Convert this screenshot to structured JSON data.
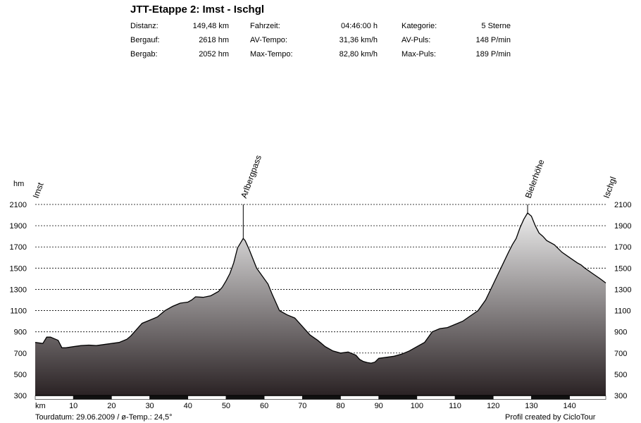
{
  "header": {
    "title": "JTT-Etappe 2: Imst - Ischgl",
    "stats": [
      {
        "label": "Distanz:",
        "value": "149,48 km"
      },
      {
        "label": "Bergauf:",
        "value": "2618 hm"
      },
      {
        "label": "Bergab:",
        "value": "2052 hm"
      },
      {
        "label": "Fahrzeit:",
        "value": "04:46:00 h"
      },
      {
        "label": "AV-Tempo:",
        "value": "31,36 km/h"
      },
      {
        "label": "Max-Tempo:",
        "value": "82,80 km/h"
      },
      {
        "label": "Kategorie:",
        "value": "5 Sterne"
      },
      {
        "label": "AV-Puls:",
        "value": "148 P/min"
      },
      {
        "label": "Max-Puls:",
        "value": "189 P/min"
      }
    ]
  },
  "footer": {
    "left": "Tourdatum: 29.06.2009  /  ø-Temp.: 24,5°",
    "right": "Profil created by CicloTour"
  },
  "colors": {
    "fill_top": "#ececec",
    "fill_bottom": "#2a2224",
    "outline": "#000000",
    "grid": "#000000"
  },
  "chart_data": {
    "type": "area",
    "ylabel": "hm",
    "xlabel": "km",
    "xlim": [
      0,
      149.48
    ],
    "ylim": [
      300,
      2100
    ],
    "yticks": [
      2100,
      1900,
      1700,
      1500,
      1300,
      1100,
      900,
      700,
      500,
      300
    ],
    "xticks": [
      10,
      20,
      30,
      40,
      50,
      60,
      70,
      80,
      90,
      100,
      110,
      120,
      130,
      140
    ],
    "grid": "horizontal dotted",
    "waypoints": [
      {
        "name": "Imst",
        "km": 0
      },
      {
        "name": "Arlbergpass",
        "km": 54.5,
        "elevation": 1780
      },
      {
        "name": "Bielerhöhe",
        "km": 129,
        "elevation": 2020
      },
      {
        "name": "Ischgl",
        "km": 149.48
      }
    ],
    "series": [
      {
        "x": [
          0,
          2,
          3,
          4,
          6,
          7,
          8,
          10,
          12,
          14,
          16,
          18,
          20,
          22,
          24,
          25,
          26,
          28,
          30,
          32,
          34,
          36,
          38,
          40,
          41,
          42,
          44,
          46,
          48,
          49,
          50,
          51,
          52,
          53,
          54,
          54.5,
          55,
          56,
          58,
          60,
          61,
          62,
          64,
          66,
          68,
          70,
          72,
          74,
          76,
          78,
          80,
          82,
          84,
          85,
          86,
          87,
          88,
          89,
          90,
          92,
          94,
          96,
          98,
          100,
          102,
          104,
          106,
          108,
          110,
          112,
          114,
          116,
          118,
          120,
          122,
          124,
          125,
          126,
          127,
          128,
          129,
          130,
          131,
          132,
          133,
          134,
          136,
          138,
          140,
          142,
          143,
          144,
          146,
          148,
          149.48
        ],
        "y": [
          800,
          790,
          850,
          850,
          820,
          750,
          750,
          760,
          770,
          775,
          770,
          780,
          790,
          800,
          830,
          860,
          900,
          980,
          1010,
          1040,
          1100,
          1140,
          1170,
          1180,
          1200,
          1230,
          1225,
          1240,
          1280,
          1320,
          1380,
          1450,
          1550,
          1690,
          1750,
          1780,
          1760,
          1680,
          1500,
          1400,
          1350,
          1260,
          1100,
          1060,
          1030,
          950,
          870,
          820,
          760,
          720,
          700,
          710,
          680,
          640,
          620,
          610,
          605,
          615,
          650,
          660,
          670,
          690,
          720,
          760,
          800,
          900,
          930,
          940,
          970,
          1000,
          1050,
          1100,
          1200,
          1350,
          1500,
          1650,
          1720,
          1780,
          1880,
          1960,
          2020,
          1990,
          1900,
          1830,
          1800,
          1760,
          1720,
          1650,
          1600,
          1550,
          1530,
          1500,
          1450,
          1400,
          1360
        ]
      }
    ]
  }
}
